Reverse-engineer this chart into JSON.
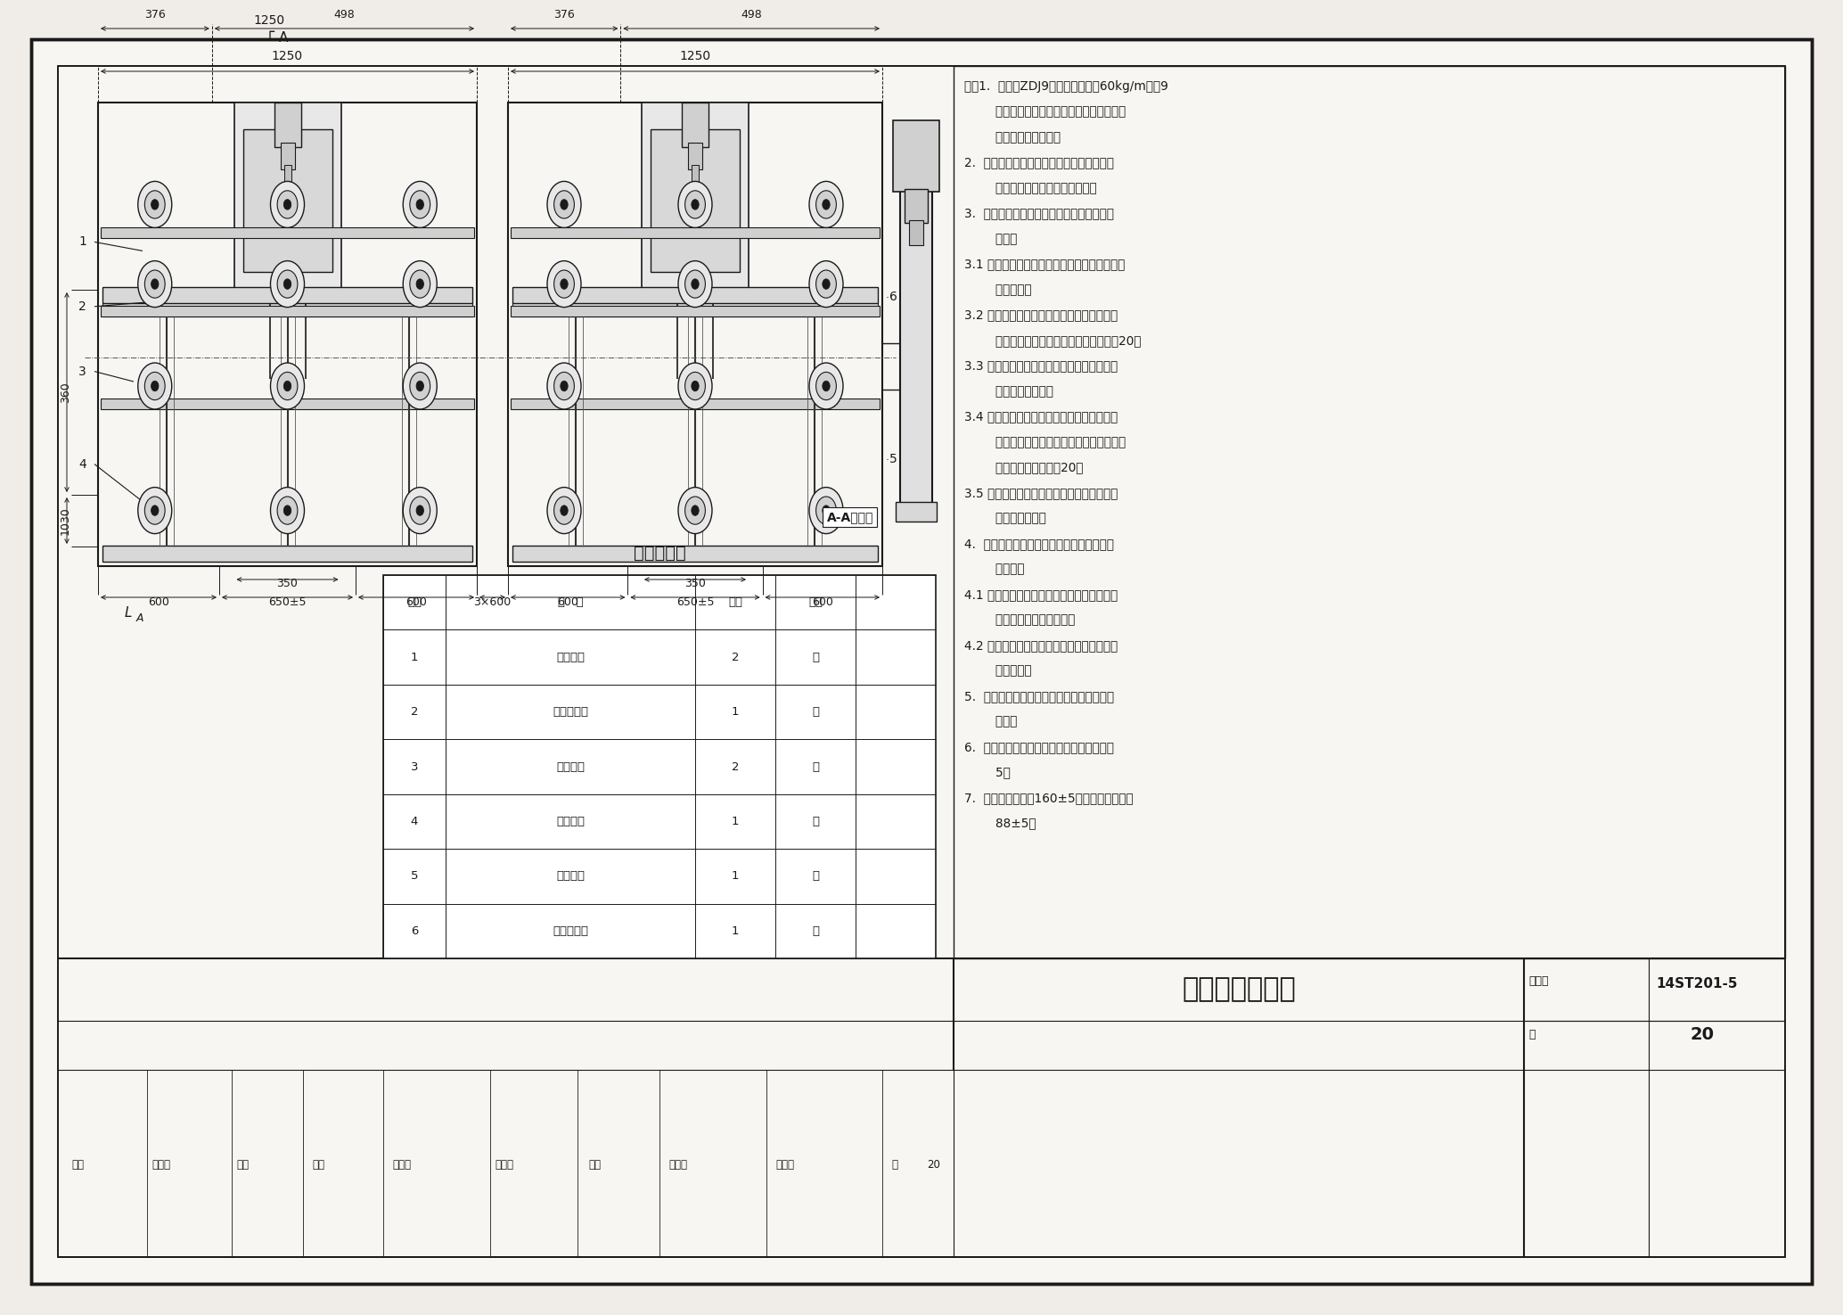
{
  "bg_color": "#f0ede8",
  "paper_color": "#f8f6f2",
  "border_color": "#1a1a1a",
  "title": "转辙器安装总图",
  "drawing_number": "14ST201-5",
  "page": "20",
  "table_title": "名称对照表",
  "table_headers": [
    "序号",
    "名   称",
    "数量",
    "单位"
  ],
  "table_rows": [
    [
      "1",
      "基础角钢",
      "2",
      "根"
    ],
    [
      "2",
      "动作连接杆",
      "1",
      "根"
    ],
    [
      "3",
      "短表示杆",
      "2",
      "根"
    ],
    [
      "4",
      "长表示杆",
      "1",
      "根"
    ],
    [
      "5",
      "长表示杆",
      "1",
      "根"
    ],
    [
      "6",
      "动作连接杆",
      "1",
      "根"
    ]
  ],
  "notes_lines": [
    "注：1.  本图为ZDJ9型电动转辙机在60kg/m钢轨9",
    "        号单开道岔上的安装，此道岔基础类型为",
    "        整体减振道床方式。",
    "2.  安装装置的安装位置、安装方式应符合设",
    "        计要求和相关产品的技术规定。",
    "3.  安装装置采用侧式安装方式时应符合下列",
    "        要求：",
    "3.1 固定长基础角钢的角形铁应与钢轨密贴（轨",
    "        腰除外）；",
    "3.2 长基础角钢与单开道岔直股基本轨或对称",
    "        形道岔中心线垂直，其偏移量不得大于20；",
    "3.3 固定道岔转换设备的短基础角钢应与长基",
    "        础角钢垂直连接；",
    "3.4 密贴调整杆、表示杆或锁闭杆、尖端杆、",
    "        第一连接杆与长基础角钢之间应平行，其",
    "        前后偏差各不应大于20；",
    "3.5 各部绝缘及铁配件安装应正确，并应无遗",
    "        漏和破损现象。",
    "4.  安装装置采用轨枕式安装方式时应符合下",
    "        列要求：",
    "4.1 基础角钢应与钢轨垂直安装，角形铁应与",
    "        钢轨密贴（轨腰除外）；",
    "4.2 杆件应动作灵活，与基坑边缘应无卡组、",
    "        碰擦现象。",
    "5.  固定尖轨接头铁的螺栓头部与基本轨不得",
    "        相碰。",
    "6.  密贴调整杆动作时，其空动距离不得小于",
    "        5。",
    "7.  第一牵引点开程160±5；第二牵引点开程",
    "        88±5。"
  ],
  "bottom_labels": [
    "审核",
    "高玉起",
    "起止",
    "校对",
    "张晓斌",
    "描图居",
    "设计",
    "冯永阳",
    "制图下",
    "页",
    "20"
  ],
  "dim_1250": "1250",
  "dim_376": "376",
  "dim_498": "498",
  "dim_360": "360",
  "dim_1030": "1030",
  "dim_350": "350",
  "dim_600": "600",
  "dim_650": "650±5",
  "dim_3x600": "3×600",
  "section_label": "A-A剖面图"
}
